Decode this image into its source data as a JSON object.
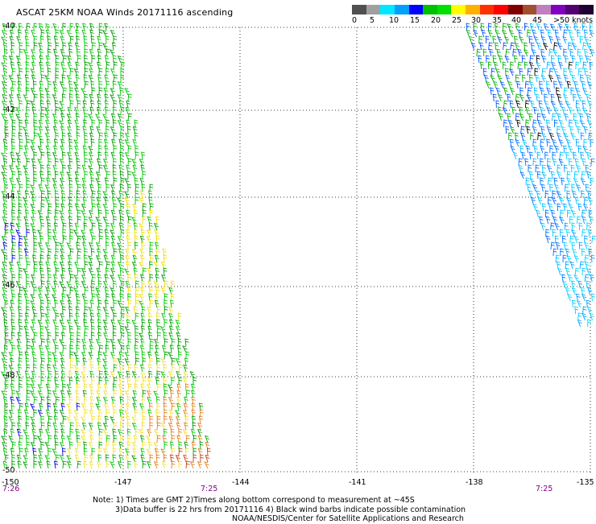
{
  "title": "ASCAT 25KM NOAA Winds 20171116 ascending",
  "legend": {
    "colors": [
      "#505050",
      "#a0a0a0",
      "#00e8ff",
      "#00a0ff",
      "#0000ff",
      "#00c000",
      "#00e000",
      "#ffff00",
      "#ffb000",
      "#ff3000",
      "#ff0000",
      "#800000",
      "#a05030",
      "#c080c0",
      "#8000c0",
      "#500070",
      "#200030"
    ],
    "labels": [
      "0",
      "5",
      "10",
      "15",
      "20",
      "25",
      "30",
      "35",
      "40",
      "45",
      ">50 knots"
    ]
  },
  "axes": {
    "lat_labels": [
      "-40",
      "-42",
      "-44",
      "-46",
      "-48",
      "-50"
    ],
    "lon_labels": [
      "-150",
      "-147",
      "-144",
      "-141",
      "-138",
      "-135"
    ],
    "time_labels": [
      "7:26",
      "7:25",
      "7:25"
    ]
  },
  "notes": [
    "Note: 1) Times are GMT 2)Times along bottom correspond to measurement at ~45S",
    "3)Data buffer is 22 hrs from 20171116 4) Black wind barbs indicate possible contamination",
    "NOAA/NESDIS/Center for Satellite Applications and Research"
  ],
  "map_data": {
    "lon_range": [
      -150,
      -135
    ],
    "lat_range": [
      -50,
      -40
    ],
    "gridlines": "dotted",
    "swaths": [
      {
        "name": "west",
        "dominant_speed_knots": "15-20",
        "speed_colors": [
          "green",
          "yellow",
          "orange",
          "blue"
        ]
      },
      {
        "name": "east",
        "dominant_speed_knots": "5-15",
        "speed_colors": [
          "cyan",
          "blue",
          "green",
          "black"
        ]
      }
    ]
  }
}
